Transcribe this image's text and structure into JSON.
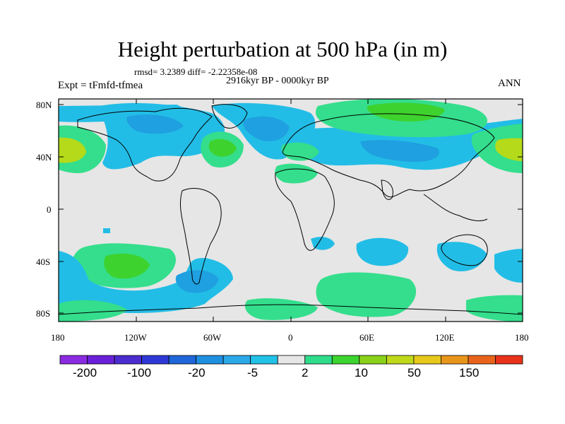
{
  "title": "Height perturbation at 500 hPa (in m)",
  "stats": "rmsd= 3.2389 diff= -2.22358e-08",
  "period": "2916kyr BP - 0000kyr BP",
  "expt": "Expt = tFmfd-tfmea",
  "season": "ANN",
  "lat_labels": [
    "80N",
    "40N",
    "0",
    "40S",
    "80S"
  ],
  "lon_labels": [
    "180",
    "120W",
    "60W",
    "0",
    "60E",
    "120E",
    "180"
  ],
  "colorbar": {
    "labels": [
      "-200",
      "-100",
      "-20",
      "-5",
      "2",
      "10",
      "50",
      "150"
    ],
    "colors": [
      "#8a2be2",
      "#6a20d8",
      "#4b2ccf",
      "#2f38d6",
      "#1f66d8",
      "#1f8fe0",
      "#2aa8e8",
      "#22c1e8",
      "#e6e6e6",
      "#2fdc8a",
      "#3cd42e",
      "#8ad21a",
      "#c0d81a",
      "#e8c81a",
      "#e8961a",
      "#e8641a",
      "#e8321a"
    ]
  },
  "map_colors": {
    "background": "#e6e6e6",
    "light_blue": "#22bde6",
    "mid_blue": "#1fa0e0",
    "dark_blue": "#1f66d8",
    "light_green": "#34de8c",
    "green": "#3ed22e",
    "yellow_green": "#b4da1a"
  }
}
